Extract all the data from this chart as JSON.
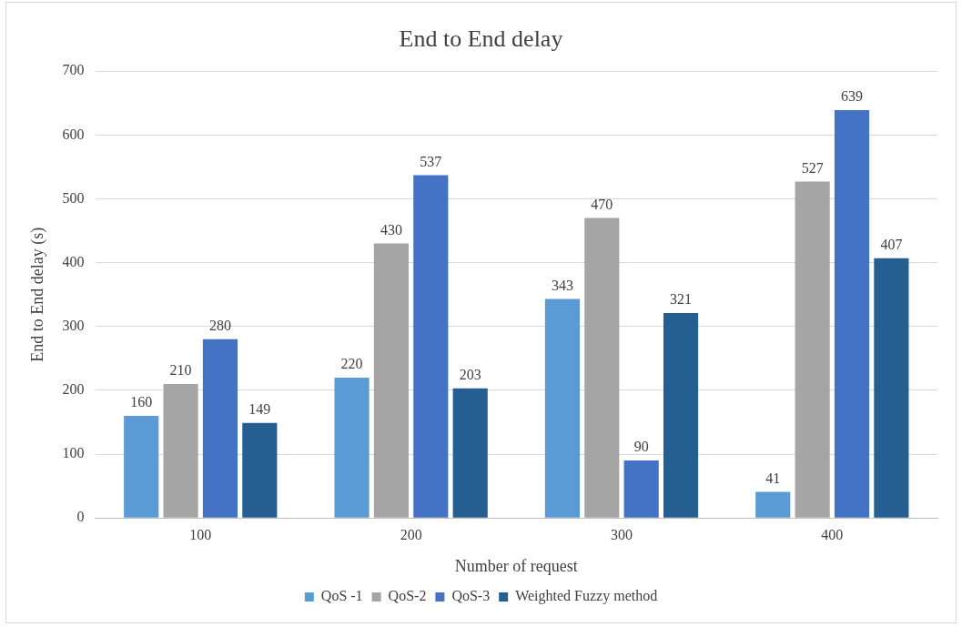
{
  "chart_data": {
    "type": "bar",
    "title": "End to End delay",
    "xlabel": "Number of request",
    "ylabel": "End to End delay (s)",
    "categories": [
      "100",
      "200",
      "300",
      "400"
    ],
    "series": [
      {
        "name": "QoS -1",
        "color": "#5b9bd5",
        "values": [
          160,
          220,
          343,
          41
        ]
      },
      {
        "name": "QoS-2",
        "color": "#a5a5a5",
        "values": [
          210,
          430,
          470,
          527
        ]
      },
      {
        "name": "QoS-3",
        "color": "#4472c4",
        "values": [
          280,
          537,
          90,
          639
        ]
      },
      {
        "name": "Weighted Fuzzy method",
        "color": "#255e91",
        "values": [
          149,
          203,
          321,
          407
        ]
      }
    ],
    "ylim": [
      0,
      700
    ],
    "yticks": [
      0,
      100,
      200,
      300,
      400,
      500,
      600,
      700
    ],
    "grid": "y",
    "legend": "bottom",
    "data_labels": true
  }
}
